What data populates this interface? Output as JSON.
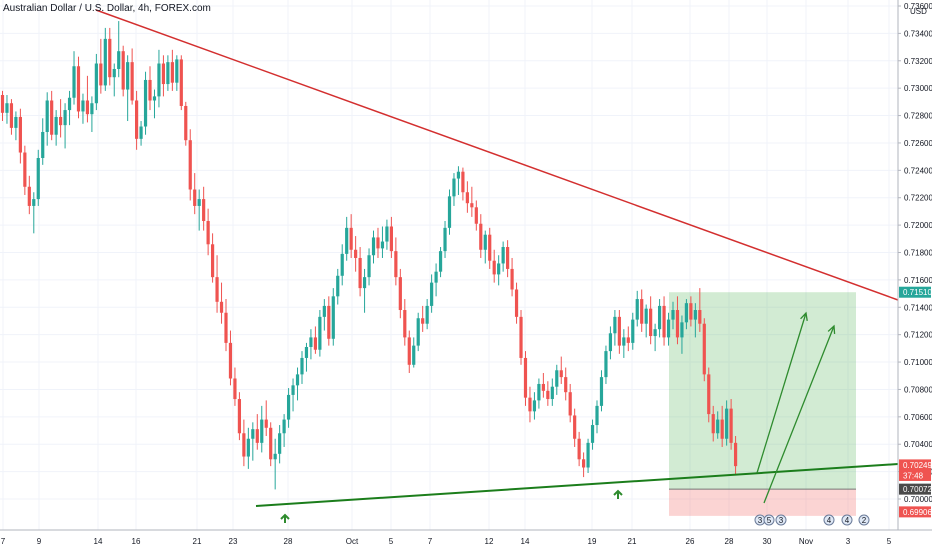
{
  "header": {
    "title": "Australian Dollar / U.S. Dollar, 4h, FOREX.com",
    "currency": "USD"
  },
  "colors": {
    "up": "#26a69a",
    "down": "#ef5350",
    "trend_upper": "#d32f2f",
    "trend_lower": "#1b7d1b",
    "profit_zone": "rgba(76,175,80,0.25)",
    "loss_zone": "rgba(239,83,80,0.25)",
    "arrow": "#2e8b2e",
    "grid": "#f0f3fa",
    "axis": "#131722"
  },
  "chart_data": {
    "type": "candlestick",
    "price_axis": {
      "labels": [
        "0.73600",
        "0.73400",
        "0.73200",
        "0.73000",
        "0.72800",
        "0.72600",
        "0.72400",
        "0.72200",
        "0.72000",
        "0.71800",
        "0.71600",
        "0.71400",
        "0.71200",
        "0.71000",
        "0.70800",
        "0.70600",
        "0.70400",
        "0.70200",
        "0.70000"
      ],
      "range": [
        0.6987,
        0.7363
      ]
    },
    "time_axis": {
      "labels": [
        "7",
        "9",
        "14",
        "16",
        "21",
        "23",
        "28",
        "Oct",
        "5",
        "7",
        "12",
        "14",
        "19",
        "21",
        "26",
        "28",
        "30",
        "Nov",
        "3",
        "5"
      ]
    },
    "price_tags": [
      {
        "label": "0.71510",
        "price": 0.7151,
        "color": "#26a69a"
      },
      {
        "label": "0.70249",
        "price": 0.70249,
        "color": "#ef5350"
      },
      {
        "label": "37:48",
        "price": 0.70172,
        "color": "#ef5350"
      },
      {
        "label": "0.70072",
        "price": 0.70072,
        "color": "#4a4a4a"
      },
      {
        "label": "0.69906",
        "price": 0.69906,
        "color": "#ef5350"
      }
    ],
    "trendlines": [
      {
        "name": "upper",
        "from": {
          "x": "Sep 6",
          "price": 0.7365
        },
        "to": {
          "x": "Nov 5",
          "price": 0.715
        }
      },
      {
        "name": "lower",
        "from": {
          "x": "Sep 25",
          "price": 0.70075
        },
        "to": {
          "x": "Nov 5",
          "price": 0.70335
        }
      }
    ],
    "position": {
      "entry": 0.70072,
      "target": 0.7151,
      "stop": 0.69906,
      "start": "Oct 23",
      "end": "Nov 1"
    },
    "candles": [
      [
        0.7295,
        0.7298,
        0.7276,
        0.7282
      ],
      [
        0.7282,
        0.7295,
        0.7274,
        0.7289
      ],
      [
        0.7289,
        0.7292,
        0.7266,
        0.7271
      ],
      [
        0.7271,
        0.7283,
        0.7262,
        0.7279
      ],
      [
        0.7279,
        0.7285,
        0.7245,
        0.7253
      ],
      [
        0.7253,
        0.7258,
        0.7222,
        0.7228
      ],
      [
        0.7228,
        0.7236,
        0.7208,
        0.7214
      ],
      [
        0.7214,
        0.7224,
        0.7194,
        0.7219
      ],
      [
        0.7219,
        0.7255,
        0.7214,
        0.7249
      ],
      [
        0.7249,
        0.7278,
        0.7244,
        0.7268
      ],
      [
        0.7268,
        0.7297,
        0.7258,
        0.7291
      ],
      [
        0.7291,
        0.7298,
        0.7262,
        0.7266
      ],
      [
        0.7266,
        0.7284,
        0.7258,
        0.7279
      ],
      [
        0.7279,
        0.7292,
        0.7264,
        0.7273
      ],
      [
        0.7273,
        0.7289,
        0.7256,
        0.7284
      ],
      [
        0.7284,
        0.7298,
        0.7273,
        0.7293
      ],
      [
        0.7293,
        0.7327,
        0.7288,
        0.7316
      ],
      [
        0.7316,
        0.7323,
        0.7278,
        0.7283
      ],
      [
        0.7283,
        0.7296,
        0.7274,
        0.7291
      ],
      [
        0.7291,
        0.7309,
        0.7275,
        0.7281
      ],
      [
        0.7281,
        0.7294,
        0.7268,
        0.7289
      ],
      [
        0.7289,
        0.7325,
        0.7284,
        0.7318
      ],
      [
        0.7318,
        0.7336,
        0.7296,
        0.7302
      ],
      [
        0.7302,
        0.7344,
        0.7298,
        0.7336
      ],
      [
        0.7336,
        0.7344,
        0.7302,
        0.7308
      ],
      [
        0.7308,
        0.7318,
        0.7294,
        0.7314
      ],
      [
        0.7314,
        0.7349,
        0.7308,
        0.7327
      ],
      [
        0.7327,
        0.7331,
        0.7294,
        0.7299
      ],
      [
        0.7299,
        0.7324,
        0.7276,
        0.7319
      ],
      [
        0.7319,
        0.7329,
        0.7288,
        0.7291
      ],
      [
        0.7291,
        0.7298,
        0.7255,
        0.7263
      ],
      [
        0.7263,
        0.7276,
        0.7258,
        0.7272
      ],
      [
        0.7272,
        0.7312,
        0.7266,
        0.7306
      ],
      [
        0.7306,
        0.7316,
        0.7284,
        0.7291
      ],
      [
        0.7291,
        0.7299,
        0.7278,
        0.7294
      ],
      [
        0.7294,
        0.7328,
        0.7286,
        0.7318
      ],
      [
        0.7318,
        0.7324,
        0.7294,
        0.7303
      ],
      [
        0.7303,
        0.7324,
        0.7298,
        0.7319
      ],
      [
        0.7319,
        0.7328,
        0.7298,
        0.7304
      ],
      [
        0.7304,
        0.7324,
        0.7298,
        0.7321
      ],
      [
        0.7321,
        0.7324,
        0.7284,
        0.7287
      ],
      [
        0.7287,
        0.729,
        0.7258,
        0.7262
      ],
      [
        0.7262,
        0.727,
        0.7218,
        0.7226
      ],
      [
        0.7226,
        0.7238,
        0.7208,
        0.7214
      ],
      [
        0.7214,
        0.7226,
        0.7196,
        0.7219
      ],
      [
        0.7219,
        0.7228,
        0.7196,
        0.7203
      ],
      [
        0.7203,
        0.7212,
        0.7178,
        0.7186
      ],
      [
        0.7186,
        0.7194,
        0.7158,
        0.7162
      ],
      [
        0.7162,
        0.7178,
        0.7136,
        0.7144
      ],
      [
        0.7144,
        0.7158,
        0.7128,
        0.7136
      ],
      [
        0.7136,
        0.7146,
        0.7108,
        0.7114
      ],
      [
        0.7114,
        0.7123,
        0.7083,
        0.7088
      ],
      [
        0.7088,
        0.7096,
        0.7068,
        0.7073
      ],
      [
        0.7073,
        0.7078,
        0.7043,
        0.7048
      ],
      [
        0.7048,
        0.7058,
        0.7024,
        0.7031
      ],
      [
        0.7031,
        0.7052,
        0.7022,
        0.7044
      ],
      [
        0.7044,
        0.7056,
        0.7028,
        0.7051
      ],
      [
        0.7051,
        0.7062,
        0.7036,
        0.7041
      ],
      [
        0.7041,
        0.7068,
        0.7034,
        0.7058
      ],
      [
        0.7058,
        0.7072,
        0.7046,
        0.7052
      ],
      [
        0.7052,
        0.7056,
        0.7024,
        0.7029
      ],
      [
        0.7029,
        0.7044,
        0.7007,
        0.7033
      ],
      [
        0.7033,
        0.7054,
        0.7026,
        0.7048
      ],
      [
        0.7048,
        0.7062,
        0.7038,
        0.7058
      ],
      [
        0.7058,
        0.7081,
        0.7052,
        0.7076
      ],
      [
        0.7076,
        0.7088,
        0.7064,
        0.7083
      ],
      [
        0.7083,
        0.7096,
        0.7072,
        0.7091
      ],
      [
        0.7091,
        0.7108,
        0.7084,
        0.7103
      ],
      [
        0.7103,
        0.7114,
        0.7093,
        0.7111
      ],
      [
        0.7111,
        0.7124,
        0.7102,
        0.7118
      ],
      [
        0.7118,
        0.7126,
        0.7106,
        0.7109
      ],
      [
        0.7109,
        0.7138,
        0.7104,
        0.7133
      ],
      [
        0.7133,
        0.7146,
        0.7123,
        0.7141
      ],
      [
        0.7141,
        0.7148,
        0.7112,
        0.7117
      ],
      [
        0.7117,
        0.7154,
        0.7112,
        0.7148
      ],
      [
        0.7148,
        0.7168,
        0.7142,
        0.7163
      ],
      [
        0.7163,
        0.7186,
        0.7156,
        0.7179
      ],
      [
        0.7179,
        0.7206,
        0.7174,
        0.7198
      ],
      [
        0.7198,
        0.7208,
        0.7176,
        0.7182
      ],
      [
        0.7182,
        0.7192,
        0.7166,
        0.7176
      ],
      [
        0.7176,
        0.7184,
        0.7148,
        0.7154
      ],
      [
        0.7154,
        0.7168,
        0.7136,
        0.7162
      ],
      [
        0.7162,
        0.7183,
        0.7156,
        0.7178
      ],
      [
        0.7178,
        0.7196,
        0.7172,
        0.7191
      ],
      [
        0.7191,
        0.7198,
        0.7176,
        0.7183
      ],
      [
        0.7183,
        0.7199,
        0.7176,
        0.7188
      ],
      [
        0.7188,
        0.7204,
        0.7182,
        0.7199
      ],
      [
        0.7199,
        0.7206,
        0.7176,
        0.7181
      ],
      [
        0.7181,
        0.7191,
        0.7156,
        0.7162
      ],
      [
        0.7162,
        0.7168,
        0.7132,
        0.7138
      ],
      [
        0.7138,
        0.7146,
        0.7112,
        0.7118
      ],
      [
        0.7118,
        0.7123,
        0.7092,
        0.7098
      ],
      [
        0.7098,
        0.7118,
        0.7096,
        0.7112
      ],
      [
        0.7112,
        0.7136,
        0.7108,
        0.7132
      ],
      [
        0.7132,
        0.7141,
        0.7122,
        0.7128
      ],
      [
        0.7128,
        0.7146,
        0.7124,
        0.7141
      ],
      [
        0.7141,
        0.7164,
        0.7136,
        0.7158
      ],
      [
        0.7158,
        0.7172,
        0.7148,
        0.7166
      ],
      [
        0.7166,
        0.7184,
        0.7162,
        0.7181
      ],
      [
        0.7181,
        0.7203,
        0.7176,
        0.7198
      ],
      [
        0.7198,
        0.7226,
        0.7193,
        0.7221
      ],
      [
        0.7221,
        0.7238,
        0.7214,
        0.7234
      ],
      [
        0.7234,
        0.7243,
        0.7222,
        0.7239
      ],
      [
        0.7239,
        0.7242,
        0.7218,
        0.7224
      ],
      [
        0.7224,
        0.7232,
        0.7209,
        0.7216
      ],
      [
        0.7216,
        0.7228,
        0.7206,
        0.7213
      ],
      [
        0.7213,
        0.7218,
        0.7196,
        0.7201
      ],
      [
        0.7201,
        0.7208,
        0.7176,
        0.7182
      ],
      [
        0.7182,
        0.7196,
        0.7172,
        0.7193
      ],
      [
        0.7193,
        0.7198,
        0.7168,
        0.7174
      ],
      [
        0.7174,
        0.7182,
        0.7158,
        0.7164
      ],
      [
        0.7164,
        0.7178,
        0.7156,
        0.7172
      ],
      [
        0.7172,
        0.7188,
        0.7166,
        0.7184
      ],
      [
        0.7184,
        0.7189,
        0.7162,
        0.7168
      ],
      [
        0.7168,
        0.7176,
        0.7148,
        0.7153
      ],
      [
        0.7153,
        0.7158,
        0.7128,
        0.7133
      ],
      [
        0.7133,
        0.7138,
        0.7098,
        0.7103
      ],
      [
        0.7103,
        0.7108,
        0.7068,
        0.7074
      ],
      [
        0.7074,
        0.7082,
        0.7056,
        0.7064
      ],
      [
        0.7064,
        0.7078,
        0.7058,
        0.7072
      ],
      [
        0.7072,
        0.7088,
        0.7066,
        0.7084
      ],
      [
        0.7084,
        0.7092,
        0.7074,
        0.7079
      ],
      [
        0.7079,
        0.7086,
        0.7068,
        0.7073
      ],
      [
        0.7073,
        0.7088,
        0.7068,
        0.7082
      ],
      [
        0.7082,
        0.7098,
        0.7076,
        0.7094
      ],
      [
        0.7094,
        0.7104,
        0.7084,
        0.7089
      ],
      [
        0.7089,
        0.7096,
        0.7072,
        0.7078
      ],
      [
        0.7078,
        0.7084,
        0.7056,
        0.7061
      ],
      [
        0.7061,
        0.7066,
        0.7038,
        0.7044
      ],
      [
        0.7044,
        0.7049,
        0.7024,
        0.7029
      ],
      [
        0.7029,
        0.7034,
        0.7016,
        0.7023
      ],
      [
        0.7023,
        0.7044,
        0.7019,
        0.7041
      ],
      [
        0.7041,
        0.7058,
        0.7036,
        0.7054
      ],
      [
        0.7054,
        0.7072,
        0.7048,
        0.7068
      ],
      [
        0.7068,
        0.7094,
        0.7064,
        0.7089
      ],
      [
        0.7089,
        0.7112,
        0.7084,
        0.7108
      ],
      [
        0.7108,
        0.7126,
        0.7102,
        0.7121
      ],
      [
        0.7121,
        0.7138,
        0.7112,
        0.7133
      ],
      [
        0.7133,
        0.7138,
        0.7106,
        0.7112
      ],
      [
        0.7112,
        0.7124,
        0.7103,
        0.7118
      ],
      [
        0.7118,
        0.7126,
        0.7108,
        0.7114
      ],
      [
        0.7114,
        0.7136,
        0.7109,
        0.7131
      ],
      [
        0.7131,
        0.7152,
        0.7126,
        0.7146
      ],
      [
        0.7146,
        0.7153,
        0.7122,
        0.7128
      ],
      [
        0.7128,
        0.7142,
        0.7118,
        0.7139
      ],
      [
        0.7139,
        0.7148,
        0.7113,
        0.7119
      ],
      [
        0.7119,
        0.7128,
        0.7108,
        0.7124
      ],
      [
        0.7124,
        0.7146,
        0.7118,
        0.7141
      ],
      [
        0.7141,
        0.7148,
        0.7112,
        0.7118
      ],
      [
        0.7118,
        0.7136,
        0.7112,
        0.7131
      ],
      [
        0.7131,
        0.7144,
        0.7124,
        0.7138
      ],
      [
        0.7138,
        0.7148,
        0.7113,
        0.7118
      ],
      [
        0.7118,
        0.7134,
        0.7106,
        0.7129
      ],
      [
        0.7129,
        0.7146,
        0.7124,
        0.7143
      ],
      [
        0.7143,
        0.7148,
        0.7126,
        0.7131
      ],
      [
        0.7131,
        0.7143,
        0.7118,
        0.7138
      ],
      [
        0.7138,
        0.7154,
        0.7122,
        0.7128
      ],
      [
        0.7128,
        0.7132,
        0.7086,
        0.7091
      ],
      [
        0.7091,
        0.7096,
        0.7056,
        0.7062
      ],
      [
        0.7062,
        0.7068,
        0.7042,
        0.7048
      ],
      [
        0.7048,
        0.7064,
        0.7044,
        0.7058
      ],
      [
        0.7058,
        0.7068,
        0.7038,
        0.7044
      ],
      [
        0.7044,
        0.7072,
        0.7039,
        0.7066
      ],
      [
        0.7066,
        0.7073,
        0.7036,
        0.7041
      ],
      [
        0.7041,
        0.7046,
        0.7018,
        0.7024
      ]
    ]
  }
}
